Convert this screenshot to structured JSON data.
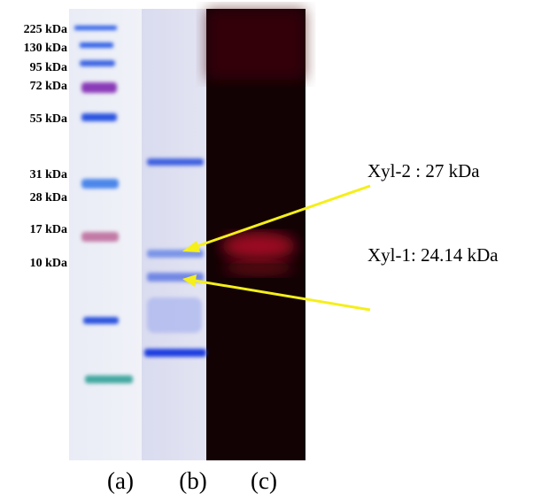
{
  "markers": [
    "225 kDa",
    "130 kDa",
    "95 kDa",
    "72 kDa",
    "55 kDa",
    "31 kDa",
    "28 kDa",
    "17 kDa",
    "10 kDa"
  ],
  "annotations": [
    "Xyl-2 : 27 kDa",
    "Xyl-1: 24.14 kDa"
  ],
  "lanes": [
    "(a)",
    "(b)",
    "(c)"
  ]
}
